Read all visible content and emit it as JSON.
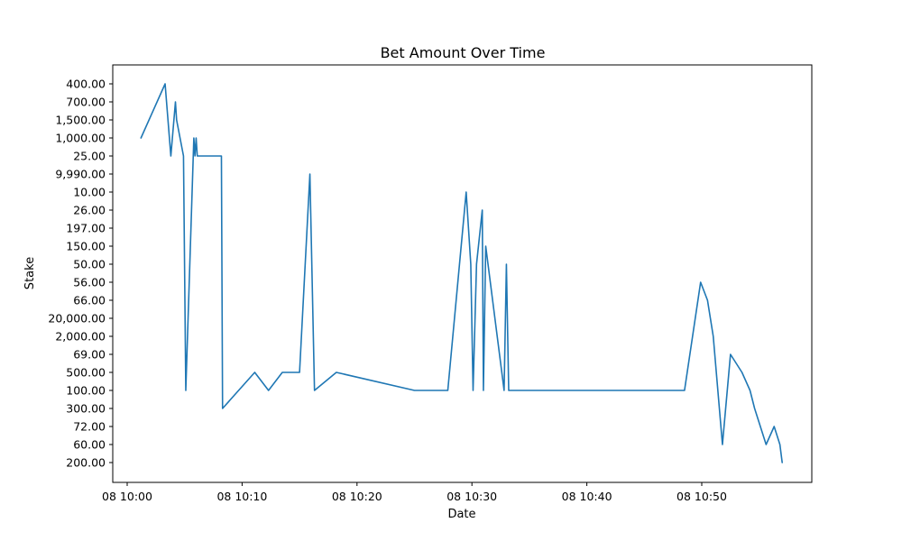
{
  "chart_data": {
    "type": "line",
    "title": "Bet Amount Over Time",
    "xlabel": "Date",
    "ylabel": "Stake",
    "grid": false,
    "legend": "none",
    "line_color": "#1f77b4",
    "x_axis": {
      "type": "time",
      "range": [
        "10:00:00",
        "10:58:00"
      ],
      "ticks": [
        {
          "value": "10:00",
          "label": "08 10:00"
        },
        {
          "value": "10:10",
          "label": "08 10:10"
        },
        {
          "value": "10:20",
          "label": "08 10:20"
        },
        {
          "value": "10:30",
          "label": "08 10:30"
        },
        {
          "value": "10:40",
          "label": "08 10:40"
        },
        {
          "value": "10:50",
          "label": "08 10:50"
        }
      ]
    },
    "y_axis": {
      "type": "categorical",
      "categories": [
        "400.00",
        "700.00",
        "1,500.00",
        "1,000.00",
        "25.00",
        "9,990.00",
        "10.00",
        "26.00",
        "197.00",
        "150.00",
        "50.00",
        "56.00",
        "66.00",
        "20,000.00",
        "2,000.00",
        "69.00",
        "500.00",
        "100.00",
        "300.00",
        "72.00",
        "60.00",
        "200.00"
      ]
    },
    "points": [
      {
        "x": "10:01:12",
        "y": "1,000.00"
      },
      {
        "x": "10:03:18",
        "y": "400.00"
      },
      {
        "x": "10:03:48",
        "y": "25.00"
      },
      {
        "x": "10:04:12",
        "y": "700.00"
      },
      {
        "x": "10:04:18",
        "y": "1,500.00"
      },
      {
        "x": "10:04:54",
        "y": "25.00"
      },
      {
        "x": "10:05:06",
        "y": "100.00"
      },
      {
        "x": "10:05:48",
        "y": "1,000.00"
      },
      {
        "x": "10:05:54",
        "y": "25.00"
      },
      {
        "x": "10:06:00",
        "y": "1,000.00"
      },
      {
        "x": "10:06:06",
        "y": "25.00"
      },
      {
        "x": "10:08:12",
        "y": "25.00"
      },
      {
        "x": "10:08:18",
        "y": "300.00"
      },
      {
        "x": "10:11:06",
        "y": "500.00"
      },
      {
        "x": "10:12:18",
        "y": "100.00"
      },
      {
        "x": "10:13:30",
        "y": "500.00"
      },
      {
        "x": "10:15:00",
        "y": "500.00"
      },
      {
        "x": "10:15:54",
        "y": "9,990.00"
      },
      {
        "x": "10:16:18",
        "y": "100.00"
      },
      {
        "x": "10:18:12",
        "y": "500.00"
      },
      {
        "x": "10:25:00",
        "y": "100.00"
      },
      {
        "x": "10:27:54",
        "y": "100.00"
      },
      {
        "x": "10:29:30",
        "y": "10.00"
      },
      {
        "x": "10:29:54",
        "y": "50.00"
      },
      {
        "x": "10:30:06",
        "y": "100.00"
      },
      {
        "x": "10:30:24",
        "y": "50.00"
      },
      {
        "x": "10:30:54",
        "y": "26.00"
      },
      {
        "x": "10:31:00",
        "y": "100.00"
      },
      {
        "x": "10:31:12",
        "y": "150.00"
      },
      {
        "x": "10:32:48",
        "y": "100.00"
      },
      {
        "x": "10:33:00",
        "y": "50.00"
      },
      {
        "x": "10:33:12",
        "y": "100.00"
      },
      {
        "x": "10:48:30",
        "y": "100.00"
      },
      {
        "x": "10:49:54",
        "y": "56.00"
      },
      {
        "x": "10:50:30",
        "y": "66.00"
      },
      {
        "x": "10:51:00",
        "y": "2,000.00"
      },
      {
        "x": "10:51:48",
        "y": "60.00"
      },
      {
        "x": "10:52:30",
        "y": "69.00"
      },
      {
        "x": "10:53:30",
        "y": "500.00"
      },
      {
        "x": "10:54:12",
        "y": "100.00"
      },
      {
        "x": "10:54:36",
        "y": "300.00"
      },
      {
        "x": "10:55:36",
        "y": "60.00"
      },
      {
        "x": "10:56:18",
        "y": "72.00"
      },
      {
        "x": "10:56:48",
        "y": "60.00"
      },
      {
        "x": "10:57:00",
        "y": "200.00"
      }
    ]
  }
}
